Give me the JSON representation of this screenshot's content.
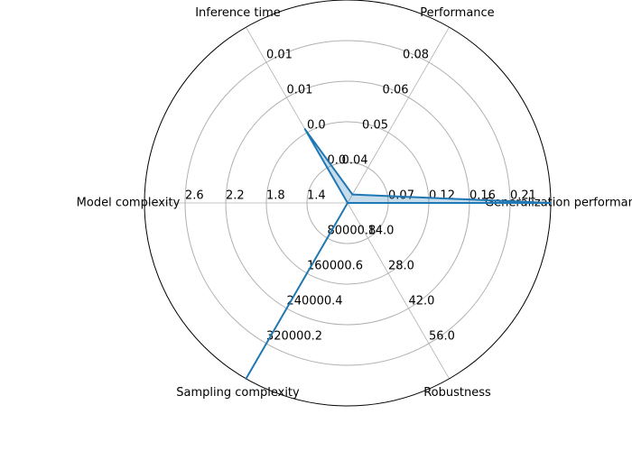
{
  "chart_data": {
    "type": "radar",
    "categories": [
      "Generalization performance",
      "Performance",
      "Inference time",
      "Model complexity",
      "Sampling complexity",
      "Robustness"
    ],
    "series": [
      {
        "color": "#1f77b4",
        "values": [
          0.2567,
          0.03,
          0.0042,
          1.0,
          400000,
          0
        ]
      }
    ],
    "rlims": [
      [
        0.0233,
        0.2567
      ],
      [
        0.027,
        0.0895
      ],
      [
        0,
        0.01
      ],
      [
        1.0,
        3.0
      ],
      [
        1,
        400000
      ],
      [
        0,
        70
      ]
    ],
    "rticks": [
      [
        {
          "value": 0.07,
          "label": "0.07"
        },
        {
          "value": 0.1167,
          "label": "0.12"
        },
        {
          "value": 0.1633,
          "label": "0.16"
        },
        {
          "value": 0.21,
          "label": "0.21"
        }
      ],
      [
        {
          "value": 0.0395,
          "label": "0.04"
        },
        {
          "value": 0.052,
          "label": "0.05"
        },
        {
          "value": 0.0645,
          "label": "0.06"
        },
        {
          "value": 0.077,
          "label": "0.08"
        }
      ],
      [
        {
          "value": 0.002,
          "label": "0.0"
        },
        {
          "value": 0.004,
          "label": "0.0"
        },
        {
          "value": 0.006,
          "label": "0.01"
        },
        {
          "value": 0.008,
          "label": "0.01"
        }
      ],
      [
        1.4,
        1.8,
        2.2,
        2.6
      ],
      [
        80000.8,
        160000.6,
        240000.4,
        320000.2
      ],
      [
        {
          "value": 14,
          "label": "14.0"
        },
        {
          "value": 28,
          "label": "28.0"
        },
        {
          "value": 42,
          "label": "42.0"
        },
        {
          "value": 56,
          "label": "56.0"
        }
      ]
    ],
    "grid": true
  }
}
